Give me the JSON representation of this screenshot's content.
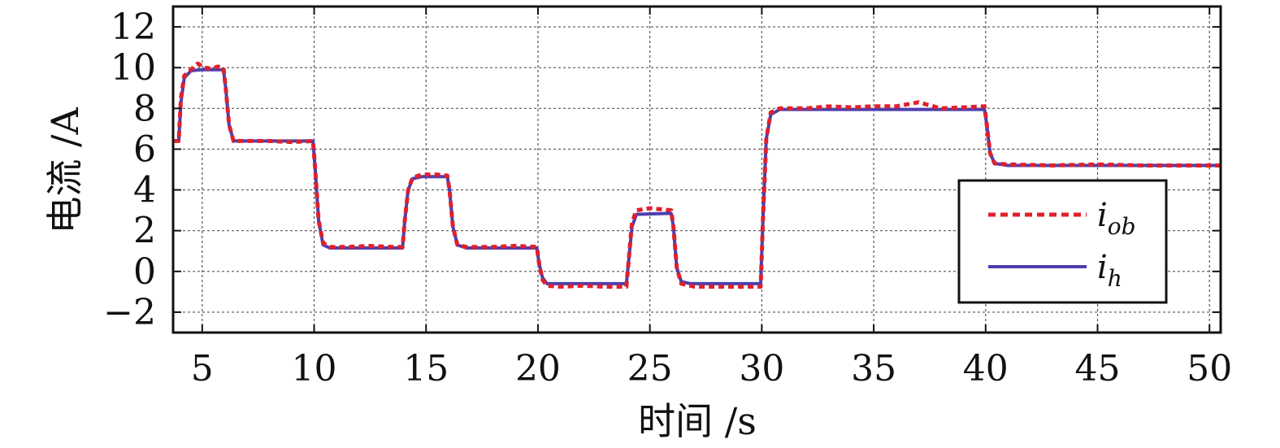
{
  "chart_data": {
    "type": "line",
    "title": "",
    "xlabel": "时间 /s",
    "ylabel": "电流 /A",
    "xlim": [
      3.7,
      50.5
    ],
    "ylim": [
      -3,
      13
    ],
    "x_ticks": [
      5,
      10,
      15,
      20,
      25,
      30,
      35,
      40,
      45,
      50
    ],
    "x_tick_labels": [
      "5",
      "10",
      "15",
      "20",
      "25",
      "30",
      "35",
      "40",
      "45",
      "50"
    ],
    "y_ticks": [
      -2,
      0,
      2,
      4,
      6,
      8,
      10,
      12
    ],
    "y_tick_labels": [
      "−2",
      "0",
      "2",
      "4",
      "6",
      "8",
      "10",
      "12"
    ],
    "grid": true,
    "legend_position": "center-right",
    "series": [
      {
        "name": "i_ob",
        "legend_main": "i",
        "legend_sub": "ob",
        "color": "#e0202c",
        "dash": "dotted",
        "points": [
          [
            3.7,
            6.4
          ],
          [
            3.95,
            6.4
          ],
          [
            4.05,
            8.5
          ],
          [
            4.2,
            9.6
          ],
          [
            4.5,
            9.9
          ],
          [
            4.8,
            10.2
          ],
          [
            5.1,
            10.0
          ],
          [
            5.4,
            9.95
          ],
          [
            5.7,
            10.05
          ],
          [
            5.95,
            10.0
          ],
          [
            6.05,
            9.0
          ],
          [
            6.2,
            7.2
          ],
          [
            6.4,
            6.4
          ],
          [
            7.0,
            6.4
          ],
          [
            8.0,
            6.4
          ],
          [
            9.0,
            6.35
          ],
          [
            9.95,
            6.4
          ],
          [
            10.05,
            5.0
          ],
          [
            10.2,
            2.5
          ],
          [
            10.4,
            1.4
          ],
          [
            10.7,
            1.2
          ],
          [
            11.5,
            1.2
          ],
          [
            12.5,
            1.25
          ],
          [
            13.5,
            1.2
          ],
          [
            13.95,
            1.2
          ],
          [
            14.05,
            2.5
          ],
          [
            14.2,
            4.0
          ],
          [
            14.4,
            4.6
          ],
          [
            14.8,
            4.75
          ],
          [
            15.5,
            4.75
          ],
          [
            15.95,
            4.7
          ],
          [
            16.05,
            4.0
          ],
          [
            16.2,
            2.2
          ],
          [
            16.4,
            1.3
          ],
          [
            16.8,
            1.2
          ],
          [
            18.0,
            1.2
          ],
          [
            19.0,
            1.25
          ],
          [
            19.95,
            1.2
          ],
          [
            20.05,
            0.4
          ],
          [
            20.2,
            -0.4
          ],
          [
            20.4,
            -0.7
          ],
          [
            21.0,
            -0.75
          ],
          [
            22.0,
            -0.7
          ],
          [
            23.0,
            -0.75
          ],
          [
            23.95,
            -0.75
          ],
          [
            24.05,
            0.5
          ],
          [
            24.2,
            2.4
          ],
          [
            24.4,
            3.0
          ],
          [
            25.0,
            3.1
          ],
          [
            25.95,
            3.0
          ],
          [
            26.05,
            2.2
          ],
          [
            26.2,
            0.2
          ],
          [
            26.4,
            -0.6
          ],
          [
            27.0,
            -0.75
          ],
          [
            28.0,
            -0.75
          ],
          [
            29.0,
            -0.75
          ],
          [
            29.95,
            -0.75
          ],
          [
            30.05,
            2.5
          ],
          [
            30.2,
            6.5
          ],
          [
            30.4,
            7.8
          ],
          [
            30.8,
            8.0
          ],
          [
            32.0,
            8.0
          ],
          [
            33.0,
            8.1
          ],
          [
            34.0,
            8.05
          ],
          [
            35.0,
            8.1
          ],
          [
            36.0,
            8.1
          ],
          [
            37.0,
            8.3
          ],
          [
            38.0,
            8.0
          ],
          [
            39.0,
            8.05
          ],
          [
            39.95,
            8.1
          ],
          [
            40.05,
            7.2
          ],
          [
            40.2,
            5.8
          ],
          [
            40.4,
            5.3
          ],
          [
            41.0,
            5.25
          ],
          [
            43.0,
            5.2
          ],
          [
            45.0,
            5.25
          ],
          [
            47.0,
            5.2
          ],
          [
            49.0,
            5.2
          ],
          [
            50.5,
            5.2
          ]
        ]
      },
      {
        "name": "i_h",
        "legend_main": "i",
        "legend_sub": "h",
        "color": "#4c3fae",
        "dash": "solid",
        "points": [
          [
            3.7,
            6.4
          ],
          [
            3.95,
            6.4
          ],
          [
            4.05,
            8.3
          ],
          [
            4.2,
            9.5
          ],
          [
            4.5,
            9.85
          ],
          [
            5.0,
            9.9
          ],
          [
            5.95,
            9.9
          ],
          [
            6.05,
            9.0
          ],
          [
            6.2,
            7.2
          ],
          [
            6.4,
            6.4
          ],
          [
            8.0,
            6.4
          ],
          [
            9.95,
            6.4
          ],
          [
            10.05,
            5.0
          ],
          [
            10.2,
            2.5
          ],
          [
            10.4,
            1.3
          ],
          [
            10.7,
            1.15
          ],
          [
            13.95,
            1.15
          ],
          [
            14.05,
            2.5
          ],
          [
            14.2,
            4.0
          ],
          [
            14.4,
            4.55
          ],
          [
            14.8,
            4.65
          ],
          [
            15.95,
            4.65
          ],
          [
            16.05,
            4.0
          ],
          [
            16.2,
            2.2
          ],
          [
            16.4,
            1.3
          ],
          [
            16.8,
            1.15
          ],
          [
            19.95,
            1.15
          ],
          [
            20.05,
            0.4
          ],
          [
            20.2,
            -0.3
          ],
          [
            20.4,
            -0.6
          ],
          [
            23.95,
            -0.6
          ],
          [
            24.05,
            0.5
          ],
          [
            24.2,
            2.2
          ],
          [
            24.4,
            2.8
          ],
          [
            25.95,
            2.85
          ],
          [
            26.05,
            2.2
          ],
          [
            26.2,
            0.2
          ],
          [
            26.4,
            -0.5
          ],
          [
            26.8,
            -0.6
          ],
          [
            29.95,
            -0.6
          ],
          [
            30.05,
            2.5
          ],
          [
            30.2,
            6.5
          ],
          [
            30.4,
            7.7
          ],
          [
            30.8,
            7.95
          ],
          [
            39.95,
            7.95
          ],
          [
            40.05,
            7.2
          ],
          [
            40.2,
            5.8
          ],
          [
            40.4,
            5.3
          ],
          [
            41.0,
            5.2
          ],
          [
            50.5,
            5.2
          ]
        ]
      }
    ]
  }
}
